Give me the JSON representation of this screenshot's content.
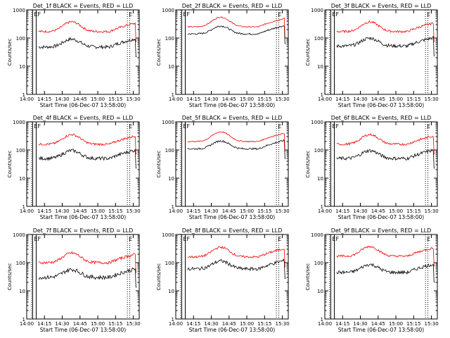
{
  "chart_data": [
    {
      "type": "line",
      "title": "Det_1f BLACK = Events, RED = LLD",
      "xlabel": "Start Time (06-Dec-07 13:58:00)",
      "ylabel": "Counts/sec",
      "yscale": "log",
      "ylim": [
        1,
        1000
      ],
      "xticks": [
        "14:00",
        "14:15",
        "14:30",
        "14:45",
        "15:00",
        "15:15",
        "15:30"
      ],
      "yticks": [
        "1",
        "10",
        "100",
        "1000"
      ],
      "markers": [
        "E",
        "F",
        "E"
      ],
      "series": [
        {
          "name": "Events",
          "color": "#000000",
          "level": 48,
          "bump": 1.9,
          "noise": 0.06
        },
        {
          "name": "LLD",
          "color": "#ff0000",
          "level": 170,
          "bump": 2.2,
          "noise": 0.04
        }
      ]
    },
    {
      "type": "line",
      "title": "Det_2f BLACK = Events, RED = LLD",
      "xlabel": "Start Time (06-Dec-07 13:58:00)",
      "ylabel": "Counts/sec",
      "yscale": "log",
      "ylim": [
        1,
        1000
      ],
      "xticks": [
        "14:00",
        "14:15",
        "14:30",
        "14:45",
        "15:00",
        "15:15",
        "15:30"
      ],
      "yticks": [
        "1",
        "10",
        "100",
        "1000"
      ],
      "markers": [
        "E",
        "F",
        "E"
      ],
      "series": [
        {
          "name": "Events",
          "color": "#000000",
          "level": 140,
          "bump": 1.9,
          "noise": 0.03
        },
        {
          "name": "LLD",
          "color": "#ff0000",
          "level": 250,
          "bump": 2.2,
          "noise": 0.02
        }
      ]
    },
    {
      "type": "line",
      "title": "Det_3f BLACK = Events, RED = LLD",
      "xlabel": "Start Time (06-Dec-07 13:58:00)",
      "ylabel": "Counts/sec",
      "yscale": "log",
      "ylim": [
        1,
        1000
      ],
      "xticks": [
        "14:00",
        "14:15",
        "14:30",
        "14:45",
        "15:00",
        "15:15",
        "15:30"
      ],
      "yticks": [
        "1",
        "10",
        "100",
        "1000"
      ],
      "markers": [
        "E",
        "F",
        "E"
      ],
      "series": [
        {
          "name": "Events",
          "color": "#000000",
          "level": 52,
          "bump": 1.9,
          "noise": 0.06
        },
        {
          "name": "LLD",
          "color": "#ff0000",
          "level": 170,
          "bump": 2.2,
          "noise": 0.04
        }
      ]
    },
    {
      "type": "line",
      "title": "Det_4f BLACK = Events, RED = LLD",
      "xlabel": "Start Time (06-Dec-07 13:58:00)",
      "ylabel": "Counts/sec",
      "yscale": "log",
      "ylim": [
        1,
        1000
      ],
      "xticks": [
        "14:00",
        "14:15",
        "14:30",
        "14:45",
        "15:00",
        "15:15",
        "15:30"
      ],
      "yticks": [
        "1",
        "10",
        "100",
        "1000"
      ],
      "markers": [
        "E",
        "F",
        "E"
      ],
      "series": [
        {
          "name": "Events",
          "color": "#000000",
          "level": 50,
          "bump": 1.9,
          "noise": 0.06
        },
        {
          "name": "LLD",
          "color": "#ff0000",
          "level": 160,
          "bump": 2.2,
          "noise": 0.04
        }
      ]
    },
    {
      "type": "line",
      "title": "Det_5f BLACK = Events, RED = LLD",
      "xlabel": "Start Time (06-Dec-07 13:58:00)",
      "ylabel": "Counts/sec",
      "yscale": "log",
      "ylim": [
        1,
        1000
      ],
      "xticks": [
        "14:00",
        "14:15",
        "14:30",
        "14:45",
        "15:00",
        "15:15",
        "15:30"
      ],
      "yticks": [
        "1",
        "10",
        "100",
        "1000"
      ],
      "markers": [
        "E",
        "F",
        "E"
      ],
      "series": [
        {
          "name": "Events",
          "color": "#000000",
          "level": 110,
          "bump": 1.9,
          "noise": 0.03
        },
        {
          "name": "LLD",
          "color": "#ff0000",
          "level": 200,
          "bump": 2.2,
          "noise": 0.02
        }
      ]
    },
    {
      "type": "line",
      "title": "Det_6f BLACK = Events, RED = LLD",
      "xlabel": "Start Time (06-Dec-07 13:58:00)",
      "ylabel": "Counts/sec",
      "yscale": "log",
      "ylim": [
        1,
        1000
      ],
      "xticks": [
        "14:00",
        "14:15",
        "14:30",
        "14:45",
        "15:00",
        "15:15",
        "15:30"
      ],
      "yticks": [
        "1",
        "10",
        "100",
        "1000"
      ],
      "markers": [
        "E",
        "F",
        "E"
      ],
      "series": [
        {
          "name": "Events",
          "color": "#000000",
          "level": 50,
          "bump": 1.9,
          "noise": 0.06
        },
        {
          "name": "LLD",
          "color": "#ff0000",
          "level": 160,
          "bump": 2.2,
          "noise": 0.04
        }
      ]
    },
    {
      "type": "line",
      "title": "Det_7f BLACK = Events, RED = LLD",
      "xlabel": "Start Time (06-Dec-07 13:58:00)",
      "ylabel": "Counts/sec",
      "yscale": "log",
      "ylim": [
        1,
        1000
      ],
      "xticks": [
        "14:00",
        "14:15",
        "14:30",
        "14:45",
        "15:00",
        "15:15",
        "15:30"
      ],
      "yticks": [
        "1",
        "10",
        "100",
        "1000"
      ],
      "markers": [
        "E",
        "F",
        "E"
      ],
      "series": [
        {
          "name": "Events",
          "color": "#000000",
          "level": 30,
          "bump": 1.9,
          "noise": 0.07
        },
        {
          "name": "LLD",
          "color": "#ff0000",
          "level": 100,
          "bump": 2.2,
          "noise": 0.05
        }
      ]
    },
    {
      "type": "line",
      "title": "Det_8f BLACK = Events, RED = LLD",
      "xlabel": "Start Time (06-Dec-07 13:58:00)",
      "ylabel": "Counts/sec",
      "yscale": "log",
      "ylim": [
        1,
        1000
      ],
      "xticks": [
        "14:00",
        "14:15",
        "14:30",
        "14:45",
        "15:00",
        "15:15",
        "15:30"
      ],
      "yticks": [
        "1",
        "10",
        "100",
        "1000"
      ],
      "markers": [
        "E",
        "F",
        "E"
      ],
      "series": [
        {
          "name": "Events",
          "color": "#000000",
          "level": 60,
          "bump": 1.9,
          "noise": 0.06
        },
        {
          "name": "LLD",
          "color": "#ff0000",
          "level": 160,
          "bump": 2.2,
          "noise": 0.04
        }
      ]
    },
    {
      "type": "line",
      "title": "Det_9f BLACK = Events, RED = LLD",
      "xlabel": "Start Time (06-Dec-07 13:58:00)",
      "ylabel": "Counts/sec",
      "yscale": "log",
      "ylim": [
        1,
        1000
      ],
      "xticks": [
        "14:00",
        "14:15",
        "14:30",
        "14:45",
        "15:00",
        "15:15",
        "15:30"
      ],
      "yticks": [
        "1",
        "10",
        "100",
        "1000"
      ],
      "markers": [
        "E",
        "F",
        "E"
      ],
      "series": [
        {
          "name": "Events",
          "color": "#000000",
          "level": 45,
          "bump": 1.9,
          "noise": 0.06
        },
        {
          "name": "LLD",
          "color": "#ff0000",
          "level": 170,
          "bump": 2.2,
          "noise": 0.04
        }
      ]
    }
  ]
}
